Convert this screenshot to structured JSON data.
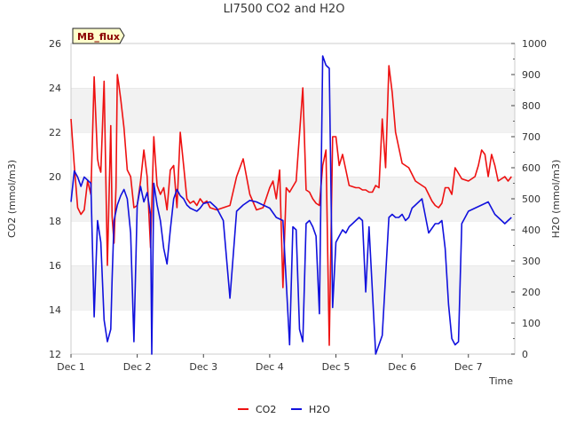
{
  "chart_data": {
    "type": "line",
    "title": "LI7500 CO2 and H2O",
    "badge": "MB_flux",
    "xlabel": "Time",
    "ylabel": "CO2 (mmol/m3)",
    "ylabel_right": "H2O (mmol/m3)",
    "xlim": [
      0,
      6.7
    ],
    "ylim": [
      12,
      26
    ],
    "ylim_right": [
      0,
      1000
    ],
    "x_ticks": [
      {
        "value": 0,
        "label": "Dec 1"
      },
      {
        "value": 1,
        "label": "Dec 2"
      },
      {
        "value": 2,
        "label": "Dec 3"
      },
      {
        "value": 3,
        "label": "Dec 4"
      },
      {
        "value": 4,
        "label": "Dec 5"
      },
      {
        "value": 5,
        "label": "Dec 6"
      },
      {
        "value": 6,
        "label": "Dec 7"
      }
    ],
    "y_ticks": [
      "12",
      "14",
      "16",
      "18",
      "20",
      "22",
      "24",
      "26"
    ],
    "y_ticks_right": [
      "0",
      "100",
      "200",
      "300",
      "400",
      "500",
      "600",
      "700",
      "800",
      "900",
      "1000"
    ],
    "legend_position": "bottom-center",
    "grid": "alternating horizontal bands",
    "series": [
      {
        "name": "CO2",
        "color": "#ee1111",
        "axis": "left",
        "x": [
          0,
          0.05,
          0.1,
          0.15,
          0.2,
          0.25,
          0.3,
          0.35,
          0.4,
          0.42,
          0.45,
          0.5,
          0.55,
          0.6,
          0.62,
          0.65,
          0.68,
          0.7,
          0.72,
          0.75,
          0.8,
          0.85,
          0.9,
          0.95,
          1.0,
          1.05,
          1.1,
          1.15,
          1.2,
          1.25,
          1.3,
          1.35,
          1.4,
          1.45,
          1.5,
          1.55,
          1.6,
          1.65,
          1.7,
          1.75,
          1.8,
          1.85,
          1.9,
          1.95,
          2.0,
          2.05,
          2.1,
          2.2,
          2.3,
          2.4,
          2.5,
          2.6,
          2.7,
          2.8,
          2.9,
          3.0,
          3.05,
          3.1,
          3.15,
          3.2,
          3.25,
          3.3,
          3.4,
          3.5,
          3.55,
          3.6,
          3.65,
          3.7,
          3.75,
          3.8,
          3.85,
          3.9,
          3.95,
          4.0,
          4.05,
          4.1,
          4.2,
          4.3,
          4.35,
          4.4,
          4.45,
          4.5,
          4.55,
          4.6,
          4.65,
          4.7,
          4.75,
          4.8,
          4.85,
          4.9,
          5.0,
          5.1,
          5.2,
          5.3,
          5.35,
          5.4,
          5.45,
          5.5,
          5.55,
          5.6,
          5.65,
          5.7,
          5.75,
          5.8,
          5.9,
          6.0,
          6.1,
          6.15,
          6.2,
          6.25,
          6.3,
          6.35,
          6.4,
          6.45,
          6.5,
          6.55,
          6.6,
          6.65
        ],
        "values": [
          22.6,
          20.5,
          18.6,
          18.3,
          18.5,
          19.8,
          19.2,
          24.5,
          20.8,
          20.5,
          20.2,
          24.3,
          16.0,
          22.3,
          18.2,
          17.0,
          19.5,
          24.6,
          24.2,
          23.5,
          22.2,
          20.3,
          20.0,
          18.6,
          18.7,
          19.8,
          21.2,
          20.0,
          16.8,
          21.8,
          19.6,
          19.2,
          19.5,
          18.5,
          20.3,
          20.5,
          18.6,
          22.0,
          20.5,
          19.0,
          18.8,
          18.9,
          18.7,
          19.0,
          18.8,
          18.9,
          18.6,
          18.5,
          18.6,
          18.7,
          20.0,
          20.8,
          19.2,
          18.5,
          18.6,
          19.5,
          19.8,
          19.0,
          20.3,
          15.0,
          19.5,
          19.3,
          19.8,
          24.0,
          19.4,
          19.3,
          19.0,
          18.8,
          18.7,
          20.5,
          21.2,
          12.4,
          21.8,
          21.8,
          20.5,
          21.0,
          19.6,
          19.5,
          19.5,
          19.4,
          19.4,
          19.3,
          19.3,
          19.6,
          19.5,
          22.6,
          20.4,
          25.0,
          23.8,
          22.0,
          20.6,
          20.4,
          19.8,
          19.6,
          19.5,
          19.2,
          18.9,
          18.7,
          18.6,
          18.8,
          19.5,
          19.5,
          19.2,
          20.4,
          19.9,
          19.8,
          20.0,
          20.5,
          21.2,
          21.0,
          20.0,
          21.0,
          20.5,
          19.8,
          19.9,
          20.0,
          19.8,
          20.0
        ],
        "note": "hand-estimated from plot"
      },
      {
        "name": "H2O",
        "color": "#1111dd",
        "axis": "right",
        "x": [
          0,
          0.05,
          0.1,
          0.15,
          0.2,
          0.25,
          0.3,
          0.35,
          0.4,
          0.45,
          0.5,
          0.55,
          0.6,
          0.62,
          0.65,
          0.7,
          0.75,
          0.8,
          0.85,
          0.9,
          0.95,
          1.0,
          1.05,
          1.1,
          1.15,
          1.2,
          1.22,
          1.25,
          1.3,
          1.35,
          1.4,
          1.45,
          1.5,
          1.55,
          1.6,
          1.65,
          1.7,
          1.75,
          1.8,
          1.85,
          1.9,
          1.95,
          2.0,
          2.1,
          2.2,
          2.3,
          2.4,
          2.5,
          2.6,
          2.7,
          2.8,
          2.9,
          3.0,
          3.1,
          3.2,
          3.3,
          3.35,
          3.4,
          3.45,
          3.5,
          3.55,
          3.6,
          3.65,
          3.7,
          3.75,
          3.8,
          3.85,
          3.9,
          3.95,
          4.0,
          4.05,
          4.1,
          4.15,
          4.2,
          4.25,
          4.3,
          4.35,
          4.4,
          4.45,
          4.5,
          4.6,
          4.7,
          4.8,
          4.85,
          4.9,
          4.95,
          5.0,
          5.05,
          5.1,
          5.15,
          5.2,
          5.3,
          5.4,
          5.5,
          5.55,
          5.6,
          5.65,
          5.7,
          5.75,
          5.8,
          5.85,
          5.9,
          6.0,
          6.1,
          6.2,
          6.3,
          6.4,
          6.5,
          6.55,
          6.6,
          6.65
        ],
        "values": [
          490,
          590,
          570,
          540,
          570,
          560,
          550,
          120,
          430,
          360,
          110,
          40,
          80,
          240,
          430,
          480,
          510,
          530,
          500,
          390,
          40,
          480,
          540,
          490,
          520,
          450,
          0,
          550,
          480,
          430,
          340,
          290,
          400,
          500,
          530,
          510,
          500,
          480,
          470,
          465,
          460,
          470,
          485,
          490,
          470,
          430,
          180,
          460,
          480,
          495,
          490,
          480,
          470,
          440,
          430,
          30,
          410,
          400,
          80,
          40,
          420,
          430,
          410,
          380,
          130,
          960,
          930,
          920,
          150,
          360,
          380,
          400,
          390,
          410,
          420,
          430,
          440,
          430,
          200,
          410,
          0,
          60,
          440,
          450,
          440,
          440,
          450,
          430,
          440,
          470,
          480,
          500,
          390,
          420,
          420,
          430,
          340,
          160,
          50,
          30,
          40,
          420,
          460,
          470,
          480,
          490,
          450,
          430,
          420,
          430,
          440
        ]
      }
    ]
  }
}
